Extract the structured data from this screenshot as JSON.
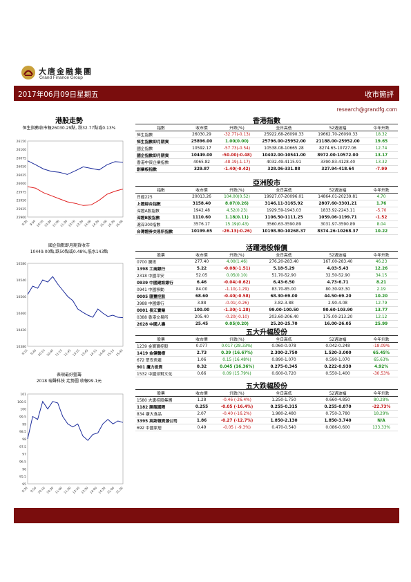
{
  "brand": {
    "name_cn": "大唐金融集團",
    "name_en": "Grand Finance Group"
  },
  "banner": {
    "date": "2017年06月09日星期五",
    "title": "收市簡評"
  },
  "email": "research@grandfg.com",
  "sections": {
    "hsi_trend": "港股走勢",
    "hk_index": "香港指數",
    "asia": "亞洲股市",
    "active": "活躍港股報價",
    "top_up": "五大升幅股份",
    "top_down": "五大跌幅股份"
  },
  "captions": {
    "hsi": "恒生指數收市報26030.29點, 跌32.77點或0.13%",
    "fut": "國企指數即月期貨收市\n10449.00點,跌50點或0.48%,低水143點",
    "stock": "表現最好藍籌\n2018 瑞聲科技 走勢圖 收報99.1元"
  },
  "headers": {
    "index": [
      "指數",
      "收市價",
      "升跌(%)",
      "全日高低",
      "52週波幅",
      "今年升跌"
    ],
    "stock": [
      "股票",
      "收市價",
      "升跌(%)",
      "全日高低",
      "52週波幅",
      "今年升跌"
    ]
  },
  "hk_index": [
    {
      "name": "恒生指數",
      "close": "26030.29",
      "chg": "-32.77(-0.13)",
      "range": "25922.68-26090.33",
      "wk52": "19662.70-26090.33",
      "ytd": "18.32",
      "c": "dn",
      "y": "up",
      "bold": false
    },
    {
      "name": "恒生指數即月期貨",
      "close": "25896.00",
      "chg": "1.00(0.00)",
      "range": "25796.00-25952.00",
      "wk52": "21188.00-25952.00",
      "ytd": "19.65",
      "c": "up",
      "y": "up",
      "bold": true
    },
    {
      "name": "國企指數",
      "close": "10592.17",
      "chg": "-57.73(-0.54)",
      "range": "10538.08-10665.28",
      "wk52": "8274.65-10727.06",
      "ytd": "12.74",
      "c": "dn",
      "y": "up",
      "bold": false
    },
    {
      "name": "國企指數即月期貨",
      "close": "10449.00",
      "chg": "-50.00(-0.48)",
      "range": "10402.00-10541.00",
      "wk52": "8972.00-10572.00",
      "ytd": "13.17",
      "c": "dn",
      "y": "up",
      "bold": true
    },
    {
      "name": "香港中資企業指數",
      "close": "4065.82",
      "chg": "-48.19(-1.17)",
      "range": "4032.49-4115.91",
      "wk52": "3390.83-4128.40",
      "ytd": "13.32",
      "c": "dn",
      "y": "up",
      "bold": false
    },
    {
      "name": "創業板指數",
      "close": "329.87",
      "chg": "-1.40(-0.42)",
      "range": "328.06-331.88",
      "wk52": "327.94-418.64",
      "ytd": "-7.99",
      "c": "dn",
      "y": "dn",
      "bold": true
    }
  ],
  "asia": [
    {
      "name": "日經225",
      "close": "20013.26",
      "chg": "104.00(0.52)",
      "range": "19927.07-20096.01",
      "wk52": "14864.01-20239.81",
      "ytd": "4.70",
      "c": "up",
      "y": "up",
      "bold": false
    },
    {
      "name": "上證綜合指數",
      "close": "3158.40",
      "chg": "8.07(0.26)",
      "range": "3146.11-3165.92",
      "wk52": "2807.60-3301.21",
      "ytd": "1.76",
      "c": "up",
      "y": "up",
      "bold": true
    },
    {
      "name": "深證A股指數",
      "close": "1942.48",
      "chg": "4.52(0.23)",
      "range": "1929.59-1943.03",
      "wk52": "1833.92-2243.11",
      "ytd": "-5.70",
      "c": "up",
      "y": "dn",
      "bold": false
    },
    {
      "name": "深證B股指數",
      "close": "1110.60",
      "chg": "1.18(0.11)",
      "range": "1106.50-1111.25",
      "wk52": "1059.06-1199.71",
      "ytd": "-1.52",
      "c": "up",
      "y": "dn",
      "bold": true
    },
    {
      "name": "滬深300指數",
      "close": "3576.17",
      "chg": "15.19(0.43)",
      "range": "3560.63-3590.89",
      "wk52": "3031.97-3590.89",
      "ytd": "8.04",
      "c": "up",
      "y": "up",
      "bold": false
    },
    {
      "name": "台灣證券交易所指數",
      "close": "10199.65",
      "chg": "-26.13(-0.26)",
      "range": "10198.80-10268.37",
      "wk52": "8374.26-10268.37",
      "ytd": "10.22",
      "c": "dn",
      "y": "up",
      "bold": true
    }
  ],
  "active": [
    {
      "name": "0700 騰訊",
      "close": "277.40",
      "chg": "4.00(1.46)",
      "range": "276.20-283.40",
      "wk52": "167.00-283.40",
      "ytd": "46.23",
      "c": "up",
      "y": "up",
      "bold": false
    },
    {
      "name": "1398 工商銀行",
      "close": "5.22",
      "chg": "-0.08(-1.51)",
      "range": "5.18-5.29",
      "wk52": "4.03-5.43",
      "ytd": "12.26",
      "c": "dn",
      "y": "up",
      "bold": true
    },
    {
      "name": "2318 中國平安",
      "close": "52.05",
      "chg": "0.05(0.10)",
      "range": "51.70-52.90",
      "wk52": "32.50-52.90",
      "ytd": "34.15",
      "c": "up",
      "y": "up",
      "bold": false
    },
    {
      "name": "0939 中國建設銀行",
      "close": "6.46",
      "chg": "-0.04(-0.62)",
      "range": "6.43-6.50",
      "wk52": "4.73-6.71",
      "ytd": "8.21",
      "c": "dn",
      "y": "up",
      "bold": true
    },
    {
      "name": "0941 中國移動",
      "close": "84.00",
      "chg": "-1.10(-1.29)",
      "range": "83.70-85.00",
      "wk52": "80.30-93.30",
      "ytd": "2.19",
      "c": "dn",
      "y": "up",
      "bold": false
    },
    {
      "name": "0005 匯豐控股",
      "close": "68.60",
      "chg": "-0.40(-0.58)",
      "range": "68.30-69.00",
      "wk52": "44.50-69.20",
      "ytd": "10.20",
      "c": "dn",
      "y": "up",
      "bold": true
    },
    {
      "name": "3988 中國銀行",
      "close": "3.88",
      "chg": "-0.01(-0.26)",
      "range": "3.82-3.88",
      "wk52": "2.90-4.08",
      "ytd": "12.79",
      "c": "dn",
      "y": "up",
      "bold": false
    },
    {
      "name": "0001 長江實業",
      "close": "100.00",
      "chg": "-1.30(-1.28)",
      "range": "99.00-100.50",
      "wk52": "80.60-103.90",
      "ytd": "13.77",
      "c": "dn",
      "y": "up",
      "bold": true
    },
    {
      "name": "0388 香港交易所",
      "close": "205.40",
      "chg": "-0.20(-0.10)",
      "range": "203.60-206.40",
      "wk52": "175.00-213.20",
      "ytd": "12.12",
      "c": "dn",
      "y": "up",
      "bold": false
    },
    {
      "name": "2628 中國人壽",
      "close": "25.45",
      "chg": "0.05(0.20)",
      "range": "25.20-25.70",
      "wk52": "16.00-26.05",
      "ytd": "25.99",
      "c": "up",
      "y": "up",
      "bold": true
    }
  ],
  "top_up": [
    {
      "name": "1239 金寶寶控股",
      "close": "0.077",
      "chg": "0.017 (28.33%)",
      "range": "0.060-0.078",
      "wk52": "0.042-0.248",
      "ytd": "-18.09%",
      "c": "up",
      "y": "dn",
      "bold": false
    },
    {
      "name": "1419 金健醫療",
      "close": "2.73",
      "chg": "0.39 (16.67%)",
      "range": "2.300-2.750",
      "wk52": "1.520-3.000",
      "ytd": "65.45%",
      "c": "up",
      "y": "up",
      "bold": true
    },
    {
      "name": "672 眾安房產",
      "close": "1.06",
      "chg": "0.15 (16.48%)",
      "range": "0.890-1.070",
      "wk52": "0.590-1.070",
      "ytd": "65.63%",
      "c": "up",
      "y": "up",
      "bold": false
    },
    {
      "name": "901 鷹力投資",
      "close": "0.32",
      "chg": "0.045 (16.36%)",
      "range": "0.275-0.345",
      "wk52": "0.222-0.930",
      "ytd": "4.92%",
      "c": "up",
      "y": "up",
      "bold": true
    },
    {
      "name": "1532 中國派對文化",
      "close": "0.66",
      "chg": "0.09 (15.79%)",
      "range": "0.600-0.720",
      "wk52": "0.550-1.400",
      "ytd": "-30.53%",
      "c": "up",
      "y": "dn",
      "bold": false
    }
  ],
  "top_down": [
    {
      "name": "1580 大唐控股集團",
      "close": "1.28",
      "chg": "-0.46 (-26.4%)",
      "range": "1.250-1.750",
      "wk52": "0.660-4.850",
      "ytd": "80.28%",
      "c": "dn",
      "y": "up",
      "bold": false
    },
    {
      "name": "1182 勝龍國際",
      "close": "0.255",
      "chg": "-0.05 (-16.4%)",
      "range": "0.255-0.315",
      "wk52": "0.255-0.870",
      "ytd": "-22.73%",
      "c": "dn",
      "y": "dn",
      "bold": true
    },
    {
      "name": "834 康大食品",
      "close": "2.07",
      "chg": "-0.40 (-16.2%)",
      "range": "1.980-2.480",
      "wk52": "0.750-3.780",
      "ytd": "18.29%",
      "c": "dn",
      "y": "up",
      "bold": false
    },
    {
      "name": "3395 英斯頓資源公司",
      "close": "1.86",
      "chg": "-0.27 (-12.7%)",
      "range": "1.850-2.130",
      "wk52": "1.850-3.740",
      "ytd": "N/A",
      "c": "dn",
      "y": "up",
      "bold": true
    },
    {
      "name": "692 中國家居",
      "close": "0.49",
      "chg": "-0.05 ( -9.3%)",
      "range": "0.470-0.540",
      "wk52": "0.086-0.600",
      "ytd": "133.33%",
      "c": "dn",
      "y": "up",
      "bold": false
    }
  ],
  "chart_data": [
    {
      "type": "line",
      "ylim": [
        25900,
        26150
      ],
      "yticks": [
        "26150",
        "26100",
        "26075",
        "26050",
        "26025",
        "26000",
        "25975",
        "25950",
        "25925",
        "25900"
      ],
      "xticks": [
        "9:30",
        "9:50",
        "10:10",
        "10:30",
        "11:00",
        "11:30",
        "13:10",
        "13:30",
        "14:00",
        "14:30",
        "15:00",
        "15:30",
        "16:00"
      ],
      "series": [
        {
          "color": "#1a2a9a",
          "values": [
            26085,
            26072,
            26058,
            26050,
            26047,
            26040,
            26052,
            26065,
            26060,
            26055,
            26072,
            26082,
            26080
          ]
        },
        {
          "color": "#e02020",
          "values": [
            26000,
            25995,
            25980,
            25970,
            25960,
            25950,
            25945,
            25938,
            25940,
            25955,
            25975,
            25985,
            25992
          ]
        }
      ]
    },
    {
      "type": "line",
      "ylim": [
        10380,
        10580
      ],
      "yticks": [
        "10580",
        "10540",
        "10500",
        "10460",
        "10420",
        "10380"
      ],
      "xticks": [
        "9:15",
        "9:45",
        "10:15",
        "10:45",
        "11:15",
        "11:45",
        "13:15",
        "13:45",
        "14:15",
        "14:45",
        "15:15",
        "15:45"
      ],
      "series": [
        {
          "color": "#1a2a9a",
          "values": [
            10505,
            10525,
            10520,
            10540,
            10535,
            10548,
            10530,
            10515,
            10500,
            10490,
            10470,
            10462,
            10455,
            10450,
            10470,
            10460,
            10452,
            10455,
            10450,
            10449
          ]
        }
      ]
    },
    {
      "type": "line",
      "ylim": [
        95,
        101
      ],
      "yticks": [
        "101",
        "100.5",
        "100",
        "99.5",
        "99",
        "98.5",
        "98",
        "97.5",
        "97",
        "96.5",
        "96",
        "95.5",
        "95"
      ],
      "xticks": [
        "9:30",
        "9:50",
        "10:10",
        "10:30",
        "11:00",
        "11:30",
        "13:10",
        "13:30",
        "14:00",
        "14:30",
        "15:00",
        "15:30"
      ],
      "series": [
        {
          "color": "#1a2a9a",
          "values": [
            98.0,
            99.5,
            99.3,
            100.5,
            100.0,
            100.5,
            100.4,
            99.5,
            99.0,
            98.8,
            99.0,
            98.2,
            97.9,
            98.3,
            98.4,
            99.0,
            99.3,
            99.0,
            99.2,
            99.1
          ]
        }
      ]
    }
  ]
}
